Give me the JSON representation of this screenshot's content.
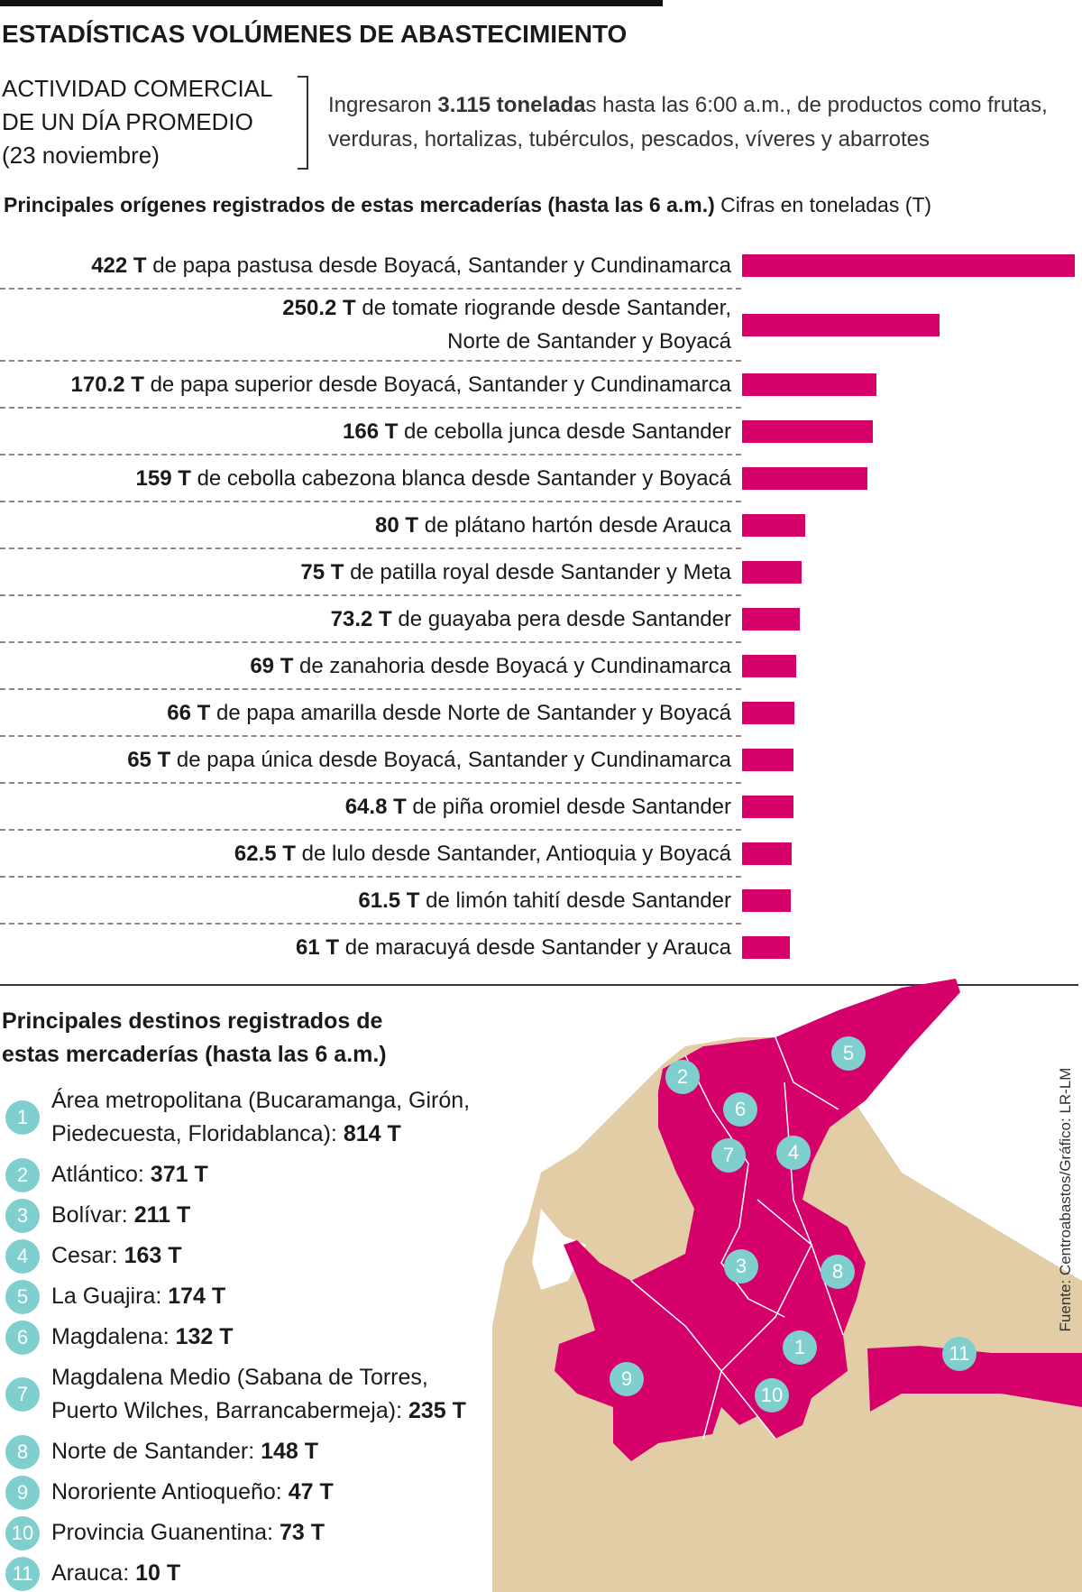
{
  "header": {
    "title": "ESTADÍSTICAS VOLÚMENES DE ABASTECIMIENTO",
    "subtitle_lines": [
      "ACTIVIDAD COMERCIAL",
      "DE UN DÍA PROMEDIO",
      "(23 noviembre)"
    ],
    "intro": [
      "Ingresaron ",
      "3.115 tonelada",
      "s hasta las 6:00 a.m., de productos como frutas, verduras, hortalizas, tubérculos, pescados, víveres y abarrotes"
    ]
  },
  "chart_data": {
    "type": "bar",
    "orientation": "horizontal",
    "title": "Principales orígenes registrados de estas mercaderías (hasta las 6 a.m.)",
    "subtitle": "Cifras en toneladas (T)",
    "categories": [
      "de papa pastusa desde Boyacá, Santander y Cundinamarca",
      "de tomate riogrande desde Santander,\nNorte de Santander y Boyacá",
      "de papa superior desde Boyacá, Santander y Cundinamarca",
      "de cebolla junca desde Santander",
      "de cebolla cabezona blanca desde Santander y Boyacá",
      "de plátano hartón desde Arauca",
      "de patilla royal desde Santander y Meta",
      "de guayaba pera desde Santander",
      "de zanahoria desde Boyacá y Cundinamarca",
      "de papa amarilla desde Norte de Santander y Boyacá",
      "de papa única desde Boyacá, Santander y Cundinamarca",
      "de piña oromiel desde Santander",
      "de lulo desde Santander, Antioquia y Boyacá",
      "de limón tahití desde Santander",
      "de maracuyá desde Santander y Arauca"
    ],
    "values": [
      422,
      250.2,
      170.2,
      166,
      159,
      80,
      75,
      73.2,
      69,
      66,
      65,
      64.8,
      62.5,
      61.5,
      61
    ],
    "value_labels": [
      "422 T",
      "250.2 T",
      "170.2 T",
      "166 T",
      "159 T",
      "80 T",
      "75 T",
      "73.2 T",
      "69 T",
      "66 T",
      "65 T",
      "64.8 T",
      "62.5 T",
      "61.5 T",
      "61 T"
    ],
    "color": "#d6006a"
  },
  "destinations": {
    "title": "Principales destinos registrados de\nestas mercaderías (hasta las 6 a.m.)",
    "items": [
      {
        "number": "1",
        "name": "Área metropolitana (Bucaramanga, Girón,\nPiedecuesta, Floridablanca):",
        "value": "814 T"
      },
      {
        "number": "2",
        "name": "Atlántico:",
        "value": "371 T"
      },
      {
        "number": "3",
        "name": "Bolívar:",
        "value": "211 T"
      },
      {
        "number": "4",
        "name": "Cesar:",
        "value": "163 T"
      },
      {
        "number": "5",
        "name": "La Guajira:",
        "value": "174 T"
      },
      {
        "number": "6",
        "name": "Magdalena:",
        "value": "132 T"
      },
      {
        "number": "7",
        "name": "Magdalena Medio (Sabana de Torres,\nPuerto Wilches, Barrancabermeja):",
        "value": "235 T"
      },
      {
        "number": "8",
        "name": "Norte de Santander:",
        "value": "148 T"
      },
      {
        "number": "9",
        "name": "Nororiente Antioqueño:",
        "value": "47 T"
      },
      {
        "number": "10",
        "name": "Provincia Guanentina:",
        "value": "73 T"
      },
      {
        "number": "11",
        "name": "Arauca:",
        "value": "10 T"
      }
    ]
  },
  "source": "Fuente: Centroabastos/Gráfico: LR-LM"
}
